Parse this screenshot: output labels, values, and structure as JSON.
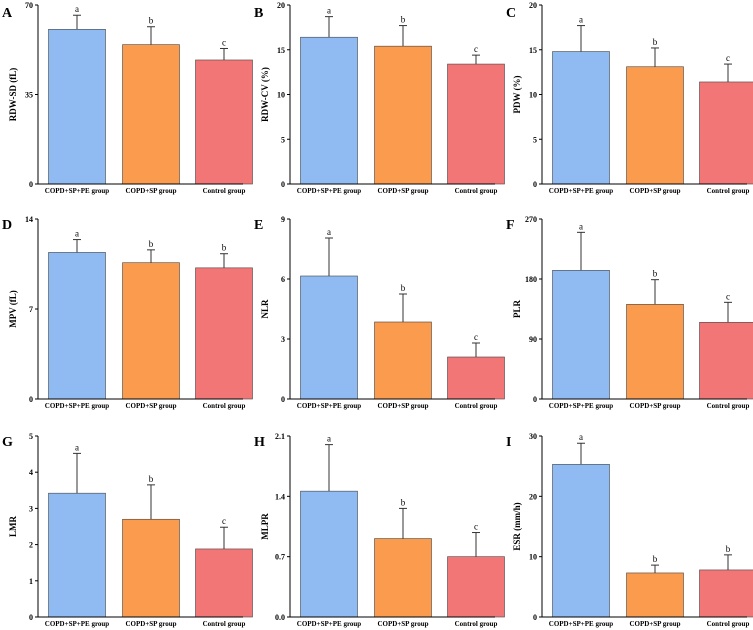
{
  "figure": {
    "colors": {
      "COPD+SP+PE group": "#8fbbf2",
      "COPD+SP group": "#fa9b4e",
      "Control group": "#f37677"
    },
    "bar_outline": "#444444"
  },
  "chart_data": [
    {
      "panel": "A",
      "type": "bar",
      "ylabel": "RDW-SD (fL)",
      "ylim": [
        0,
        70
      ],
      "yticks": [
        0,
        35,
        70
      ],
      "categories": [
        "COPD+SP+PE group",
        "COPD+SP group",
        "Control group"
      ],
      "values": [
        60.5,
        54.5,
        48.5
      ],
      "errors": [
        5.5,
        7.0,
        4.5
      ],
      "letters": [
        "a",
        "b",
        "c"
      ]
    },
    {
      "panel": "B",
      "type": "bar",
      "ylabel": "RDW-CV (%)",
      "ylim": [
        0,
        20
      ],
      "yticks": [
        0,
        5,
        10,
        15,
        20
      ],
      "categories": [
        "COPD+SP+PE group",
        "COPD+SP group",
        "Control group"
      ],
      "values": [
        16.4,
        15.4,
        13.4
      ],
      "errors": [
        2.3,
        2.3,
        1.0
      ],
      "letters": [
        "a",
        "b",
        "c"
      ]
    },
    {
      "panel": "C",
      "type": "bar",
      "ylabel": "PDW (%)",
      "ylim": [
        0,
        20
      ],
      "yticks": [
        0,
        5,
        10,
        15,
        20
      ],
      "categories": [
        "COPD+SP+PE group",
        "COPD+SP group",
        "Control group"
      ],
      "values": [
        14.8,
        13.1,
        11.4
      ],
      "errors": [
        2.9,
        2.1,
        2.0
      ],
      "letters": [
        "a",
        "b",
        "c"
      ]
    },
    {
      "panel": "D",
      "type": "bar",
      "ylabel": "MPV (fL)",
      "ylim": [
        0,
        14
      ],
      "yticks": [
        0,
        7,
        14
      ],
      "categories": [
        "COPD+SP+PE group",
        "COPD+SP group",
        "Control group"
      ],
      "values": [
        11.4,
        10.6,
        10.2
      ],
      "errors": [
        1.0,
        1.0,
        1.1
      ],
      "letters": [
        "a",
        "b",
        "b"
      ]
    },
    {
      "panel": "E",
      "type": "bar",
      "ylabel": "NLR",
      "ylim": [
        0,
        9
      ],
      "yticks": [
        0,
        3,
        6,
        9
      ],
      "categories": [
        "COPD+SP+PE group",
        "COPD+SP group",
        "Control group"
      ],
      "values": [
        6.15,
        3.85,
        2.1
      ],
      "errors": [
        1.9,
        1.4,
        0.7
      ],
      "letters": [
        "a",
        "b",
        "c"
      ]
    },
    {
      "panel": "F",
      "type": "bar",
      "ylabel": "PLR",
      "ylim": [
        0,
        270
      ],
      "yticks": [
        0,
        90,
        180,
        270
      ],
      "categories": [
        "COPD+SP+PE group",
        "COPD+SP group",
        "Control group"
      ],
      "values": [
        193,
        142,
        115
      ],
      "errors": [
        57,
        37,
        30
      ],
      "letters": [
        "a",
        "b",
        "c"
      ]
    },
    {
      "panel": "G",
      "type": "bar",
      "ylabel": "LMR",
      "ylim": [
        0,
        5
      ],
      "yticks": [
        0,
        1,
        2,
        3,
        4,
        5
      ],
      "categories": [
        "COPD+SP+PE group",
        "COPD+SP group",
        "Control group"
      ],
      "values": [
        3.42,
        2.7,
        1.88
      ],
      "errors": [
        1.1,
        0.95,
        0.6
      ],
      "letters": [
        "a",
        "b",
        "c"
      ]
    },
    {
      "panel": "H",
      "type": "bar",
      "ylabel": "MLPR",
      "ylim": [
        0,
        2.1
      ],
      "yticks": [
        0.0,
        0.7,
        1.4,
        2.1
      ],
      "categories": [
        "COPD+SP+PE group",
        "COPD+SP group",
        "Control group"
      ],
      "values": [
        1.46,
        0.91,
        0.7
      ],
      "errors": [
        0.54,
        0.35,
        0.28
      ],
      "letters": [
        "a",
        "b",
        "c"
      ]
    },
    {
      "panel": "I",
      "type": "bar",
      "ylabel": "ESR (mm/h)",
      "ylim": [
        0,
        30
      ],
      "yticks": [
        0,
        10,
        20,
        30
      ],
      "categories": [
        "COPD+SP+PE group",
        "COPD+SP group",
        "Control group"
      ],
      "values": [
        25.3,
        7.3,
        7.8
      ],
      "errors": [
        3.5,
        1.3,
        2.5
      ],
      "letters": [
        "a",
        "b",
        "b"
      ]
    }
  ]
}
